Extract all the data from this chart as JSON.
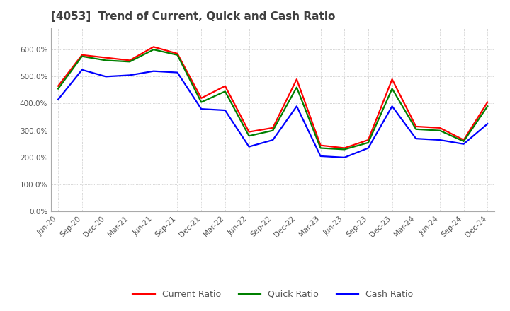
{
  "title": "[4053]  Trend of Current, Quick and Cash Ratio",
  "x_labels": [
    "Jun-20",
    "Sep-20",
    "Dec-20",
    "Mar-21",
    "Jun-21",
    "Sep-21",
    "Dec-21",
    "Mar-22",
    "Jun-22",
    "Sep-22",
    "Dec-22",
    "Mar-23",
    "Jun-23",
    "Sep-23",
    "Dec-23",
    "Mar-24",
    "Jun-24",
    "Sep-24",
    "Dec-24"
  ],
  "current_ratio": [
    465,
    580,
    570,
    560,
    610,
    585,
    420,
    465,
    295,
    310,
    490,
    245,
    235,
    265,
    490,
    315,
    310,
    265,
    405
  ],
  "quick_ratio": [
    455,
    575,
    560,
    555,
    600,
    580,
    405,
    445,
    280,
    300,
    460,
    235,
    230,
    255,
    455,
    305,
    300,
    260,
    390
  ],
  "cash_ratio": [
    415,
    525,
    500,
    505,
    520,
    515,
    380,
    375,
    240,
    265,
    390,
    205,
    200,
    235,
    390,
    270,
    265,
    250,
    325
  ],
  "ylim": [
    0,
    680
  ],
  "yticks": [
    0,
    100,
    200,
    300,
    400,
    500,
    600
  ],
  "current_color": "#ff0000",
  "quick_color": "#008000",
  "cash_color": "#0000ff",
  "bg_color": "#ffffff",
  "grid_color": "#b0b0b0",
  "title_color": "#404040",
  "line_width": 1.6
}
